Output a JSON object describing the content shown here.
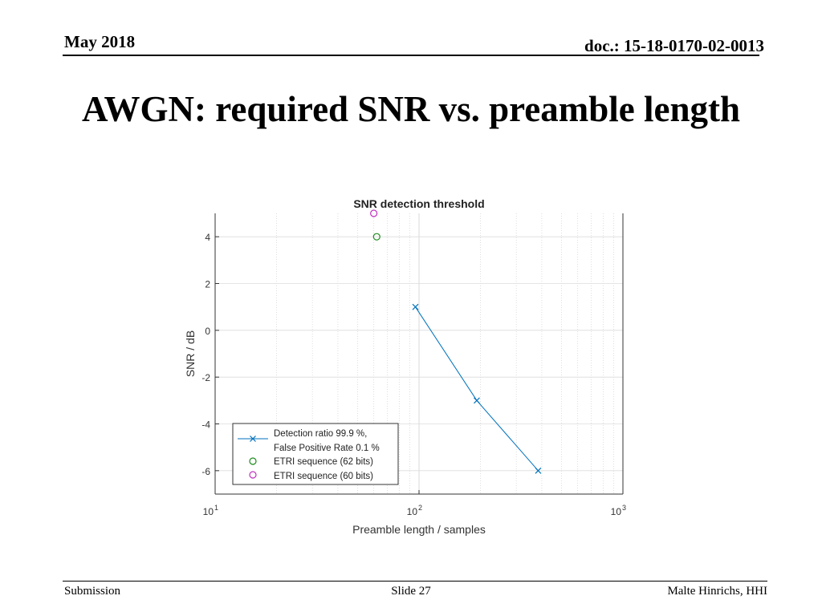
{
  "header": {
    "date": "May 2018",
    "doc": "doc.: 15-18-0170-02-0013"
  },
  "slide": {
    "title": "AWGN: required SNR vs. preamble length"
  },
  "footer": {
    "left": "Submission",
    "center": "Slide 27",
    "right": "Malte Hinrichs, HHI"
  },
  "chart_data": {
    "type": "line",
    "title": "SNR detection threshold",
    "xlabel": "Preamble length / samples",
    "ylabel": "SNR / dB",
    "xscale": "log",
    "xlim": [
      10,
      1000
    ],
    "ylim": [
      -7,
      5
    ],
    "grid": true,
    "legend_position": "bottom-left",
    "x_ticks": [
      {
        "base": "10",
        "exp": "1"
      },
      {
        "base": "10",
        "exp": "2"
      },
      {
        "base": "10",
        "exp": "3"
      }
    ],
    "y_ticks": [
      "4",
      "2",
      "0",
      "-2",
      "-4",
      "-6"
    ],
    "series": [
      {
        "name": "Detection ratio 99.9 %,",
        "name2": "False Positive Rate 0.1 %",
        "marker": "x",
        "line": true,
        "color": "#0072BD",
        "x": [
          96,
          192,
          384
        ],
        "y": [
          1,
          -3,
          -6
        ]
      },
      {
        "name": "ETRI sequence (62 bits)",
        "marker": "o",
        "line": false,
        "color": "#1a8a1a",
        "x": [
          62
        ],
        "y": [
          4
        ]
      },
      {
        "name": "ETRI sequence (60 bits)",
        "marker": "o",
        "line": false,
        "color": "#c030c0",
        "x": [
          60
        ],
        "y": [
          5
        ]
      }
    ]
  }
}
